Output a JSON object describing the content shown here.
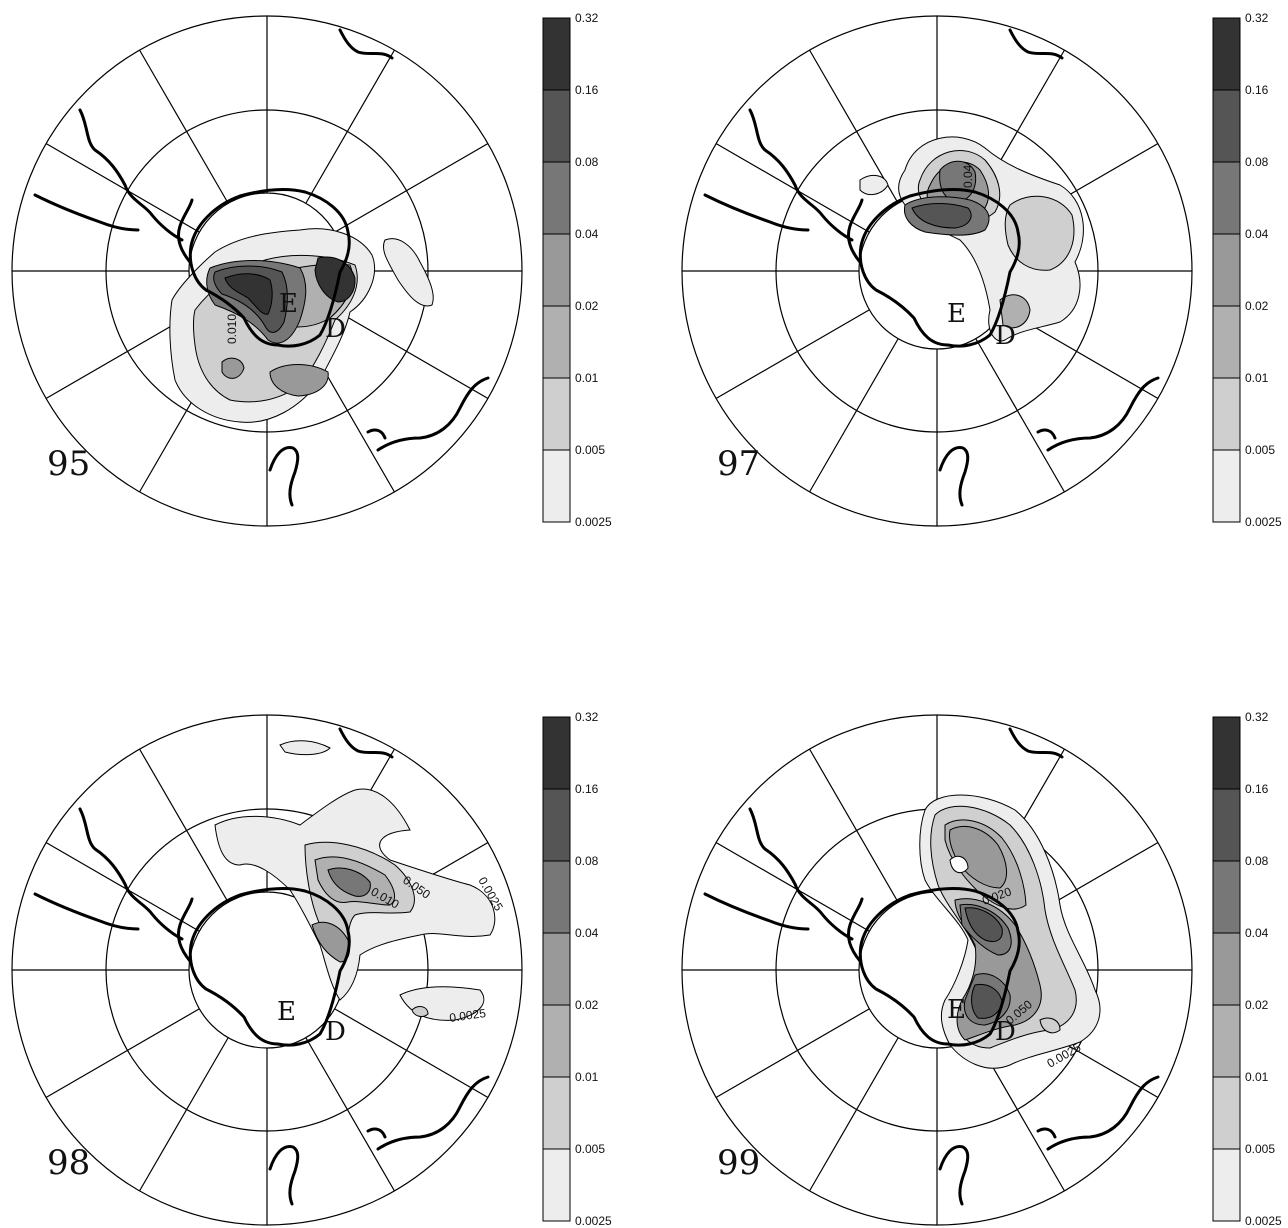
{
  "panels": [
    {
      "label": "95",
      "sites": [
        "E",
        "D"
      ],
      "contour_labels": [
        "0.010"
      ]
    },
    {
      "label": "97",
      "sites": [
        "E",
        "D"
      ],
      "contour_labels": [
        "0.04"
      ]
    },
    {
      "label": "98",
      "sites": [
        "E",
        "D"
      ],
      "contour_labels": [
        "0.050",
        "0.010",
        "0.0025",
        "0.0025"
      ]
    },
    {
      "label": "99",
      "sites": [
        "E",
        "D"
      ],
      "contour_labels": [
        "0.020",
        "0.050",
        "0.0025"
      ]
    }
  ],
  "colorbar": {
    "levels": [
      "0.32",
      "0.16",
      "0.08",
      "0.04",
      "0.02",
      "0.01",
      "0.005",
      "0.0025"
    ],
    "colors": [
      "#333333",
      "#555555",
      "#777777",
      "#999999",
      "#b0b0b0",
      "#cfcfcf",
      "#ededed"
    ]
  },
  "colors": {
    "outline": "#000000",
    "coast": "#000000",
    "background": "#ffffff"
  }
}
